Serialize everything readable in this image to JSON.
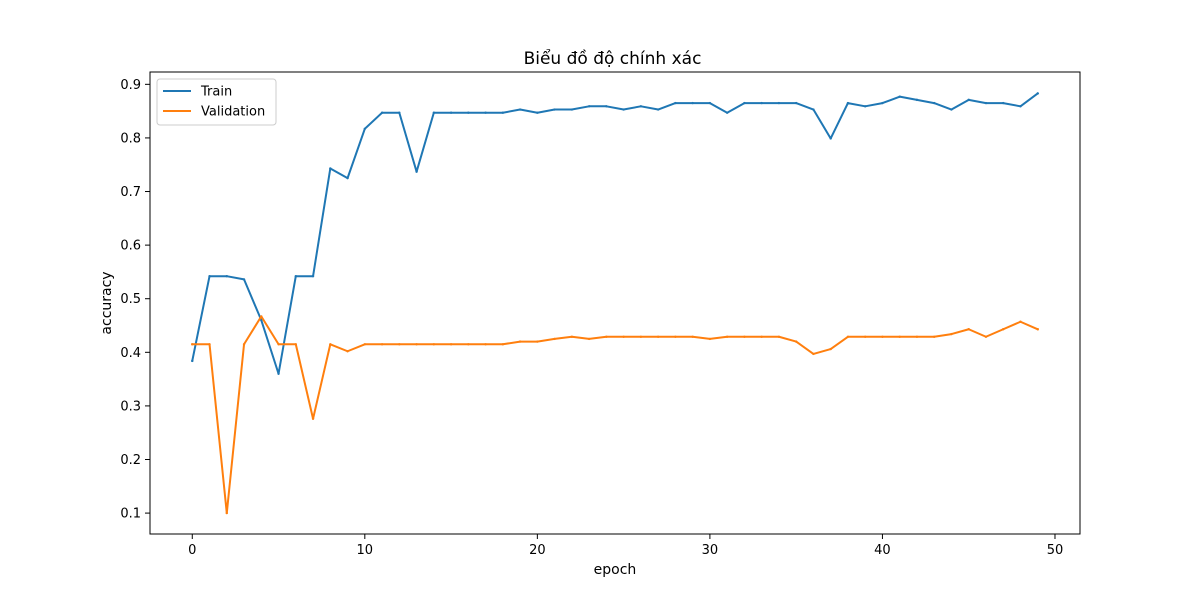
{
  "chart_data": {
    "type": "line",
    "title": "Biểu đồ độ chính xác",
    "xlabel": "epoch",
    "ylabel": "accuracy",
    "xlim": [
      -2.45,
      51.45
    ],
    "ylim": [
      0.061,
      0.923
    ],
    "xticks": [
      0,
      10,
      20,
      30,
      40,
      50
    ],
    "yticks": [
      0.1,
      0.2,
      0.3,
      0.4,
      0.5,
      0.6,
      0.7,
      0.8,
      0.9
    ],
    "grid": false,
    "legend": "top-left",
    "x": [
      0,
      1,
      2,
      3,
      4,
      5,
      6,
      7,
      8,
      9,
      10,
      11,
      12,
      13,
      14,
      15,
      16,
      17,
      18,
      19,
      20,
      21,
      22,
      23,
      24,
      25,
      26,
      27,
      28,
      29,
      30,
      31,
      32,
      33,
      34,
      35,
      36,
      37,
      38,
      39,
      40,
      41,
      42,
      43,
      44,
      45,
      46,
      47,
      48,
      49
    ],
    "series": [
      {
        "name": "Train",
        "color": "#1f77b4",
        "values": [
          0.384,
          0.542,
          0.542,
          0.536,
          0.46,
          0.36,
          0.542,
          0.542,
          0.743,
          0.725,
          0.817,
          0.847,
          0.847,
          0.737,
          0.847,
          0.847,
          0.847,
          0.847,
          0.847,
          0.853,
          0.847,
          0.853,
          0.853,
          0.859,
          0.859,
          0.853,
          0.859,
          0.853,
          0.865,
          0.865,
          0.865,
          0.847,
          0.865,
          0.865,
          0.865,
          0.865,
          0.853,
          0.799,
          0.865,
          0.859,
          0.865,
          0.877,
          0.871,
          0.865,
          0.853,
          0.871,
          0.865,
          0.865,
          0.859,
          0.883
        ]
      },
      {
        "name": "Validation",
        "color": "#ff7f0e",
        "values": [
          0.415,
          0.415,
          0.1,
          0.415,
          0.467,
          0.415,
          0.415,
          0.276,
          0.415,
          0.402,
          0.415,
          0.415,
          0.415,
          0.415,
          0.415,
          0.415,
          0.415,
          0.415,
          0.415,
          0.42,
          0.42,
          0.425,
          0.429,
          0.425,
          0.429,
          0.429,
          0.429,
          0.429,
          0.429,
          0.429,
          0.425,
          0.429,
          0.429,
          0.429,
          0.429,
          0.42,
          0.397,
          0.406,
          0.429,
          0.429,
          0.429,
          0.429,
          0.429,
          0.429,
          0.434,
          0.443,
          0.429,
          0.443,
          0.457,
          0.443
        ]
      }
    ]
  }
}
